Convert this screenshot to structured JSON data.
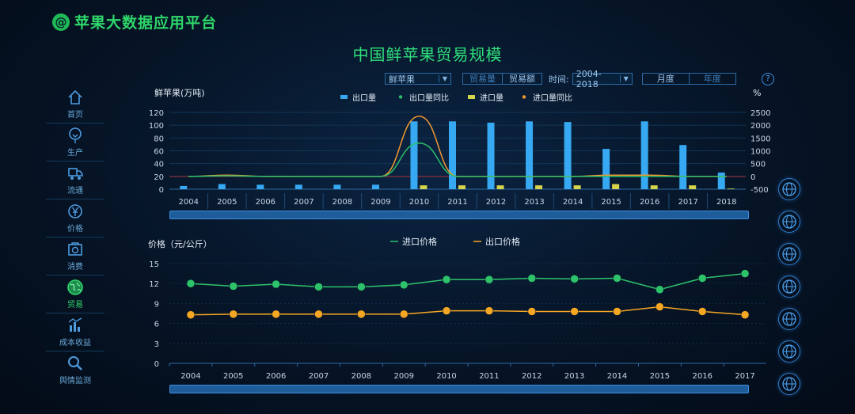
{
  "app": {
    "logo_glyph": "@",
    "title": "苹果大数据应用平台"
  },
  "page_title": "中国鲜苹果贸易规模",
  "sidebar": {
    "items": [
      {
        "label": "首页",
        "icon": "home-icon"
      },
      {
        "label": "生产",
        "icon": "tree-icon"
      },
      {
        "label": "流通",
        "icon": "truck-icon"
      },
      {
        "label": "价格",
        "icon": "yen-coin-icon"
      },
      {
        "label": "消费",
        "icon": "shopping-icon"
      },
      {
        "label": "贸易",
        "icon": "globe-icon",
        "active": true
      },
      {
        "label": "成本收益",
        "icon": "cost-chart-icon"
      },
      {
        "label": "舆情监测",
        "icon": "search-icon"
      }
    ]
  },
  "toolbar": {
    "product_select": "鲜苹果",
    "metric_tabs": [
      "贸易量",
      "贸易额"
    ],
    "time_label": "时间:",
    "time_range": "2004-2018",
    "period_tabs": [
      "月度",
      "年度"
    ],
    "help_glyph": "?"
  },
  "colors": {
    "export_bar": "#36a9f2",
    "export_yoy": "#2bbf6a",
    "import_bar": "#d6d44a",
    "import_yoy": "#f0982f",
    "import_price": "#2ec36a",
    "export_price": "#f5a623",
    "accent_green": "#2fd66a"
  },
  "right_icons": [
    "globe-trade-icon",
    "globe-pin-icon",
    "globe-network-icon",
    "globe-grid-icon",
    "globe-share-icon",
    "globe-book-icon",
    "globe-search-icon"
  ],
  "chart_data": [
    {
      "type": "bar",
      "ylabel": "鲜苹果(万吨)",
      "y2label": "%",
      "ylim": [
        0,
        120
      ],
      "y2lim": [
        -500,
        2500
      ],
      "yticks": [
        0,
        20,
        40,
        60,
        80,
        100,
        120
      ],
      "y2ticks": [
        -500,
        0,
        500,
        1000,
        1500,
        2000,
        2500
      ],
      "categories": [
        "2004",
        "2005",
        "2006",
        "2007",
        "2008",
        "2009",
        "2010",
        "2011",
        "2012",
        "2013",
        "2014",
        "2015",
        "2016",
        "2017",
        "2018"
      ],
      "series": [
        {
          "name": "出口量",
          "kind": "bar",
          "axis": "left",
          "values": [
            5,
            8,
            7,
            7,
            7,
            7,
            106,
            106,
            104,
            106,
            105,
            63,
            106,
            69,
            26
          ]
        },
        {
          "name": "出口量同比",
          "kind": "line",
          "axis": "right",
          "values": [
            0,
            20,
            0,
            0,
            0,
            0,
            1300,
            0,
            0,
            0,
            0,
            0,
            0,
            0,
            0
          ]
        },
        {
          "name": "进口量",
          "kind": "bar",
          "axis": "left",
          "values": [
            0,
            0,
            0,
            0,
            0,
            0,
            6,
            6,
            6,
            6,
            6,
            8,
            6,
            6,
            1
          ]
        },
        {
          "name": "进口量同比",
          "kind": "line",
          "axis": "right",
          "values": [
            0,
            50,
            0,
            0,
            0,
            0,
            2350,
            0,
            0,
            0,
            0,
            50,
            50,
            0,
            0
          ]
        }
      ]
    },
    {
      "type": "line",
      "ylabel": "价格（元/公斤）",
      "ylim": [
        0,
        15
      ],
      "yticks": [
        0,
        3,
        6,
        9,
        12,
        15
      ],
      "categories": [
        "2004",
        "2005",
        "2006",
        "2007",
        "2008",
        "2009",
        "2010",
        "2011",
        "2012",
        "2013",
        "2014",
        "2015",
        "2016",
        "2017"
      ],
      "series": [
        {
          "name": "进口价格",
          "values": [
            12.0,
            11.6,
            11.9,
            11.5,
            11.5,
            11.8,
            12.6,
            12.6,
            12.8,
            12.7,
            12.8,
            11.1,
            12.8,
            13.5
          ]
        },
        {
          "name": "出口价格",
          "values": [
            7.3,
            7.4,
            7.4,
            7.4,
            7.4,
            7.4,
            7.9,
            7.9,
            7.8,
            7.8,
            7.8,
            8.5,
            7.8,
            7.3
          ]
        }
      ]
    }
  ]
}
